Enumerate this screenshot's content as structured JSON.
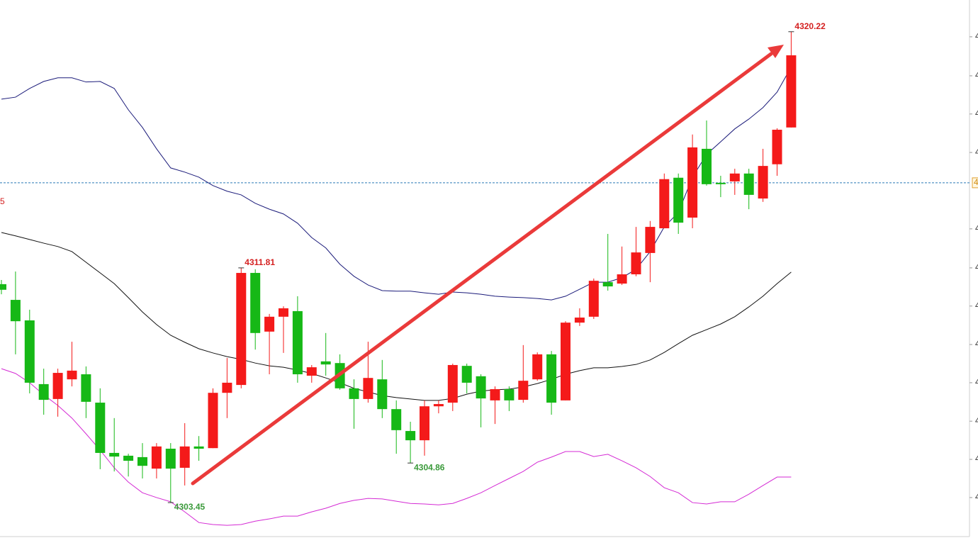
{
  "chart_data": {
    "type": "candlestick",
    "candles": {
      "open": [
        4311.23,
        4310.67,
        4309.94,
        4307.67,
        4307.14,
        4307.84,
        4308.02,
        4307.01,
        4305.22,
        4305.12,
        4305.07,
        4304.66,
        4305.37,
        4304.69,
        4305.45,
        4305.39,
        4307.36,
        4307.64,
        4311.63,
        4309.54,
        4310.07,
        4310.27,
        4307.97,
        4308.48,
        4308.42,
        4307.52,
        4307.14,
        4307.84,
        4306.78,
        4306.0,
        4305.67,
        4306.88,
        4307.01,
        4308.32,
        4307.95,
        4307.09,
        4307.49,
        4307.11,
        4307.84,
        4308.73,
        4307.09,
        4309.86,
        4310.07,
        4311.3,
        4311.25,
        4311.58,
        4312.34,
        4313.22,
        4315.02,
        4313.6,
        4316.05,
        4314.84,
        4314.89,
        4315.17,
        4314.28,
        4315.5,
        4316.81
      ],
      "high": [
        4311.38,
        4311.68,
        4310.32,
        4308.22,
        4308.22,
        4309.18,
        4308.3,
        4307.52,
        4306.46,
        4305.19,
        4305.57,
        4305.57,
        4305.57,
        4306.28,
        4305.82,
        4307.52,
        4308.6,
        4311.81,
        4311.76,
        4310.17,
        4310.44,
        4310.8,
        4308.35,
        4309.49,
        4308.73,
        4307.84,
        4309.18,
        4308.53,
        4307.09,
        4306.33,
        4307.09,
        4307.09,
        4308.4,
        4308.4,
        4308.02,
        4307.59,
        4307.59,
        4309.06,
        4308.8,
        4308.85,
        4309.91,
        4310.37,
        4311.43,
        4313.02,
        4312.57,
        4313.27,
        4313.48,
        4315.17,
        4315.17,
        4316.56,
        4317.06,
        4315.09,
        4315.34,
        4315.34,
        4316.05,
        4316.78,
        4320.22
      ],
      "low": [
        4310.87,
        4308.73,
        4307.34,
        4306.58,
        4306.51,
        4307.59,
        4306.46,
        4304.64,
        4304.56,
        4304.38,
        4304.31,
        4304.31,
        4303.45,
        4304.06,
        4304.94,
        4305.39,
        4306.46,
        4307.52,
        4308.9,
        4308.02,
        4308.78,
        4307.72,
        4307.72,
        4307.97,
        4307.47,
        4306.08,
        4307.01,
        4306.46,
        4305.19,
        4304.86,
        4305.12,
        4306.63,
        4306.71,
        4307.34,
        4306.13,
        4306.25,
        4306.71,
        4307.01,
        4307.79,
        4306.58,
        4307.09,
        4309.74,
        4309.99,
        4311.0,
        4311.2,
        4311.51,
        4311.3,
        4313.22,
        4313.02,
        4313.22,
        4314.74,
        4314.33,
        4314.41,
        4313.9,
        4314.16,
        4315.09,
        4316.81
      ],
      "close": [
        4311.03,
        4309.91,
        4307.72,
        4307.11,
        4308.07,
        4308.15,
        4307.04,
        4305.22,
        4305.09,
        4304.94,
        4304.76,
        4305.45,
        4304.66,
        4305.45,
        4305.37,
        4307.36,
        4307.72,
        4311.63,
        4309.49,
        4310.07,
        4310.37,
        4308.02,
        4308.27,
        4308.37,
        4307.52,
        4307.14,
        4307.89,
        4306.78,
        4306.03,
        4305.67,
        4306.88,
        4306.96,
        4308.35,
        4307.72,
        4307.16,
        4307.49,
        4307.09,
        4307.79,
        4308.73,
        4307.01,
        4309.86,
        4310.04,
        4311.35,
        4311.15,
        4311.58,
        4312.36,
        4313.27,
        4314.97,
        4313.42,
        4316.1,
        4314.79,
        4314.79,
        4315.17,
        4314.41,
        4315.44,
        4316.73,
        4319.38
      ]
    },
    "up_color": "#f41a1a",
    "down_color": "#16b816",
    "lines": [
      {
        "color": "#1b1b7a",
        "values": [
          4317.82,
          4317.89,
          4318.2,
          4318.45,
          4318.58,
          4318.58,
          4318.43,
          4318.45,
          4318.2,
          4317.44,
          4316.81,
          4316.05,
          4315.37,
          4315.22,
          4315.04,
          4314.74,
          4314.54,
          4314.41,
          4314.11,
          4313.9,
          4313.73,
          4313.4,
          4312.89,
          4312.52,
          4311.94,
          4311.51,
          4311.2,
          4311.0,
          4310.98,
          4310.98,
          4310.92,
          4310.87,
          4310.95,
          4310.92,
          4310.87,
          4310.8,
          4310.77,
          4310.75,
          4310.72,
          4310.67,
          4310.8,
          4311.05,
          4311.3,
          4311.3,
          4311.46,
          4311.76,
          4312.39,
          4313.27,
          4313.78,
          4315.04,
          4315.85,
          4316.3,
          4316.76,
          4317.11,
          4317.52,
          4318.07,
          4318.96
        ]
      },
      {
        "color": "#111111",
        "values": [
          4313.07,
          4312.95,
          4312.82,
          4312.69,
          4312.57,
          4312.39,
          4312.01,
          4311.63,
          4311.25,
          4310.75,
          4310.24,
          4309.79,
          4309.41,
          4309.16,
          4308.93,
          4308.78,
          4308.65,
          4308.55,
          4308.42,
          4308.32,
          4308.27,
          4308.17,
          4308.05,
          4307.89,
          4307.72,
          4307.52,
          4307.39,
          4307.26,
          4307.19,
          4307.14,
          4307.09,
          4307.09,
          4307.16,
          4307.31,
          4307.42,
          4307.47,
          4307.49,
          4307.57,
          4307.69,
          4307.84,
          4308.02,
          4308.15,
          4308.25,
          4308.25,
          4308.3,
          4308.37,
          4308.53,
          4308.8,
          4309.11,
          4309.41,
          4309.61,
          4309.81,
          4310.07,
          4310.42,
          4310.8,
          4311.25,
          4311.66
        ]
      },
      {
        "color": "#d42ad4",
        "values": [
          4308.22,
          4308.05,
          4307.72,
          4307.29,
          4306.91,
          4306.46,
          4305.9,
          4305.32,
          4304.69,
          4304.18,
          4303.8,
          4303.63,
          4303.48,
          4303.12,
          4302.74,
          4302.67,
          4302.64,
          4302.67,
          4302.79,
          4302.87,
          4302.97,
          4302.97,
          4303.12,
          4303.25,
          4303.42,
          4303.53,
          4303.6,
          4303.58,
          4303.5,
          4303.42,
          4303.4,
          4303.37,
          4303.42,
          4303.6,
          4303.8,
          4304.06,
          4304.31,
          4304.56,
          4304.89,
          4305.07,
          4305.27,
          4305.27,
          4305.09,
          4305.17,
          4304.94,
          4304.69,
          4304.38,
          4303.98,
          4303.8,
          4303.45,
          4303.4,
          4303.48,
          4303.48,
          4303.75,
          4304.06,
          4304.36,
          4304.36
        ]
      }
    ],
    "max_labels": [
      4320.22,
      4311.81
    ],
    "min_labels": [
      4303.45,
      4304.86
    ],
    "reference_line": {
      "value": 4314.84,
      "label": "4"
    },
    "left_label": "5",
    "ylim": [
      4302.24,
      4321.35
    ],
    "yticks": [
      {
        "value": 4320.04,
        "label": "4"
      },
      {
        "value": 4318.65,
        "label": "4"
      },
      {
        "value": 4317.29,
        "label": "4"
      },
      {
        "value": 4315.92,
        "label": "4"
      },
      {
        "value": 4313.2,
        "label": "4"
      },
      {
        "value": 4311.81,
        "label": "4"
      },
      {
        "value": 4310.45,
        "label": "4"
      },
      {
        "value": 4309.08,
        "label": "4"
      },
      {
        "value": 4307.72,
        "label": "4"
      },
      {
        "value": 4306.35,
        "label": "4"
      },
      {
        "value": 4304.99,
        "label": "4"
      },
      {
        "value": 4303.63,
        "label": "4"
      }
    ]
  }
}
